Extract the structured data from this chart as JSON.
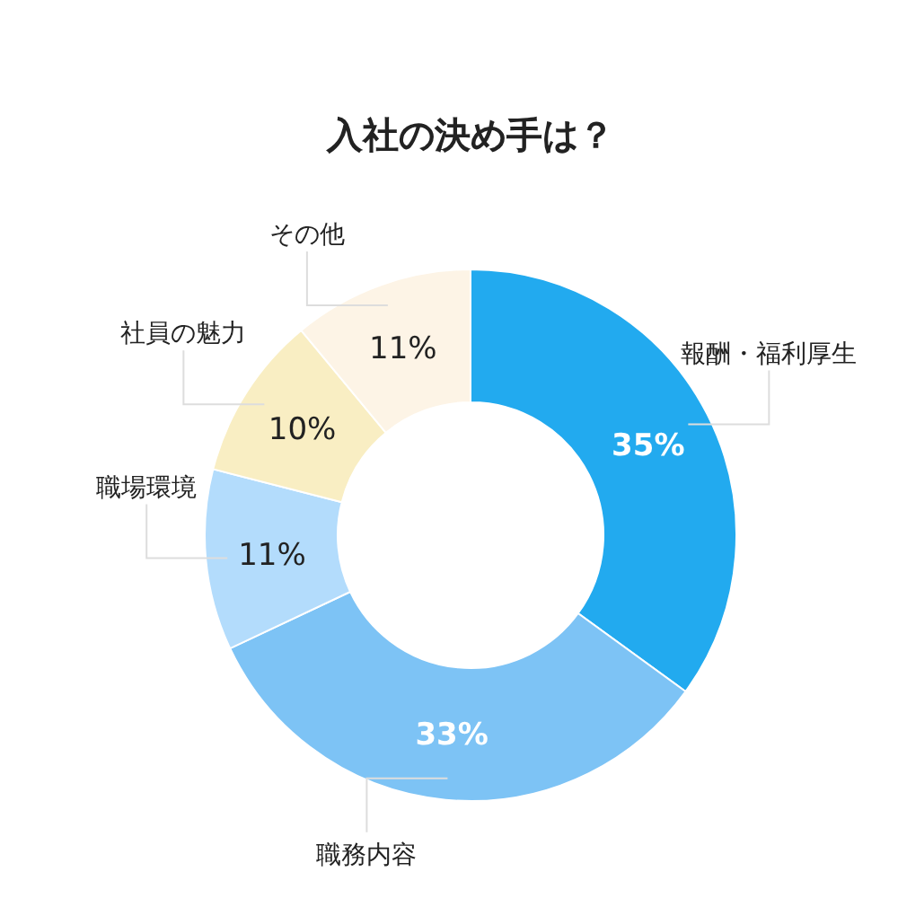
{
  "chart_data": {
    "type": "donut",
    "title": "入社の決め手は？",
    "categories": [
      "報酬・福利厚生",
      "職務内容",
      "職場環境",
      "社員の魅力",
      "その他"
    ],
    "values": [
      35,
      33,
      11,
      10,
      11
    ],
    "colors": [
      "#22aaef",
      "#7dc3f5",
      "#b3dcfc",
      "#f9eec3",
      "#fdf4e6"
    ],
    "value_labels": [
      "35%",
      "33%",
      "11%",
      "10%",
      "11%"
    ]
  }
}
